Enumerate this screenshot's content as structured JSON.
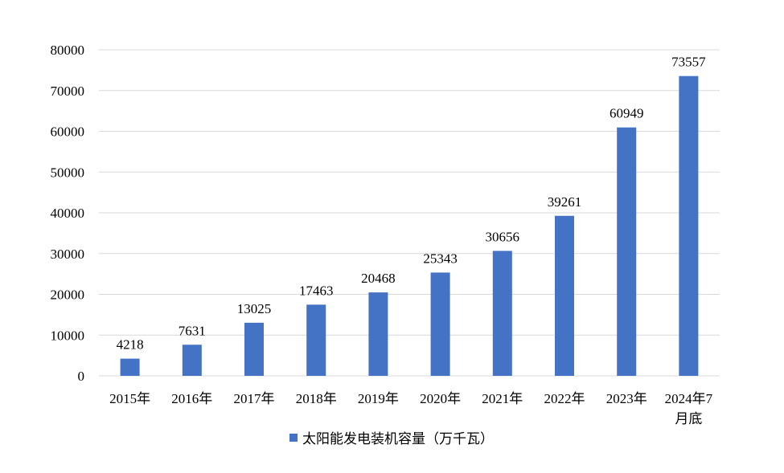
{
  "chart_data": {
    "type": "bar",
    "categories": [
      "2015年",
      "2016年",
      "2017年",
      "2018年",
      "2019年",
      "2020年",
      "2021年",
      "2022年",
      "2023年",
      "2024年7月底"
    ],
    "category_lines": [
      [
        "2015年"
      ],
      [
        "2016年"
      ],
      [
        "2017年"
      ],
      [
        "2018年"
      ],
      [
        "2019年"
      ],
      [
        "2020年"
      ],
      [
        "2021年"
      ],
      [
        "2022年"
      ],
      [
        "2023年"
      ],
      [
        "2024年7",
        "月底"
      ]
    ],
    "series": [
      {
        "name": "太阳能发电装机容量（万千瓦）",
        "values": [
          4218,
          7631,
          13025,
          17463,
          20468,
          25343,
          30656,
          39261,
          60949,
          73557
        ]
      }
    ],
    "title": "",
    "xlabel": "",
    "ylabel": "",
    "ylim": [
      0,
      80000
    ],
    "yticks": [
      0,
      10000,
      20000,
      30000,
      40000,
      50000,
      60000,
      70000,
      80000
    ],
    "grid": true,
    "legend_position": "bottom",
    "bar_color": "#4472c4",
    "grid_color": "#d9d9d9"
  }
}
